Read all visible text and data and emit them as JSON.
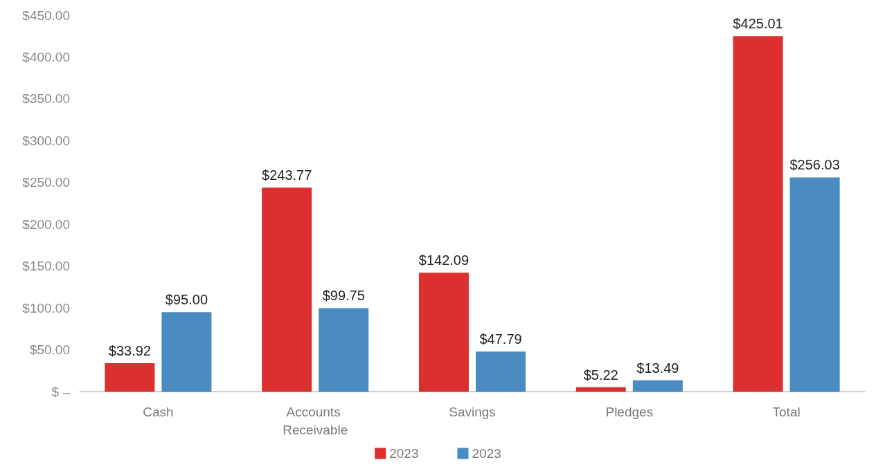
{
  "chart_data": {
    "type": "bar",
    "categories": [
      "Cash",
      "Accounts Receivable",
      "Savings",
      "Pledges",
      "Total"
    ],
    "series": [
      {
        "name": "2023",
        "color": "#dc2f2f",
        "values": [
          33.92,
          243.77,
          142.09,
          5.22,
          425.01
        ],
        "value_labels": [
          "$33.92",
          "$243.77",
          "$142.09",
          "$5.22",
          "$425.01"
        ]
      },
      {
        "name": "2023",
        "color": "#4a8bc2",
        "values": [
          95.0,
          99.75,
          47.79,
          13.49,
          256.03
        ],
        "value_labels": [
          "$95.00",
          "$99.75",
          "$47.79",
          "$13.49",
          "$256.03"
        ]
      }
    ],
    "ylim": [
      0,
      450
    ],
    "yticks": [
      {
        "value": 0,
        "label": "$ –"
      },
      {
        "value": 50,
        "label": "$50.00"
      },
      {
        "value": 100,
        "label": "$100.00"
      },
      {
        "value": 150,
        "label": "$150.00"
      },
      {
        "value": 200,
        "label": "$200.00"
      },
      {
        "value": 250,
        "label": "$250.00"
      },
      {
        "value": 300,
        "label": "$300.00"
      },
      {
        "value": 350,
        "label": "$350.00"
      },
      {
        "value": 400,
        "label": "$400.00"
      },
      {
        "value": 450,
        "label": "$450.00"
      }
    ],
    "grid": false,
    "legend": "bottom"
  }
}
